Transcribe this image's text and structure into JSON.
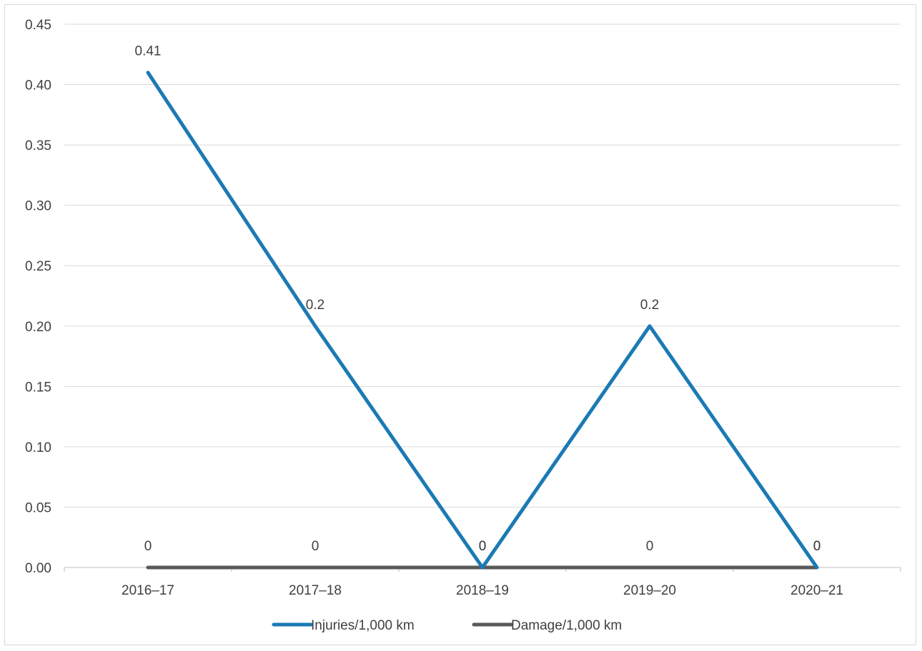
{
  "chart_data": {
    "type": "line",
    "categories": [
      "2016–17",
      "2017–18",
      "2018–19",
      "2019–20",
      "2020–21"
    ],
    "series": [
      {
        "name": "Injuries/1,000 km",
        "values": [
          0.41,
          0.2,
          0,
          0.2,
          0
        ],
        "labels": [
          "0.41",
          "0.2",
          "0",
          "0.2",
          "0"
        ],
        "color": "#1b7ab5"
      },
      {
        "name": "Damage/1,000 km",
        "values": [
          0,
          0,
          0,
          0,
          0
        ],
        "labels": [
          "0",
          "0",
          "0",
          "0",
          "0"
        ],
        "color": "#595959"
      }
    ],
    "yticks": [
      "0.00",
      "0.05",
      "0.10",
      "0.15",
      "0.20",
      "0.25",
      "0.30",
      "0.35",
      "0.40",
      "0.45"
    ],
    "ylim": [
      0,
      0.45
    ],
    "grid": true,
    "legend_position": "bottom",
    "title": "",
    "xlabel": "",
    "ylabel": ""
  }
}
